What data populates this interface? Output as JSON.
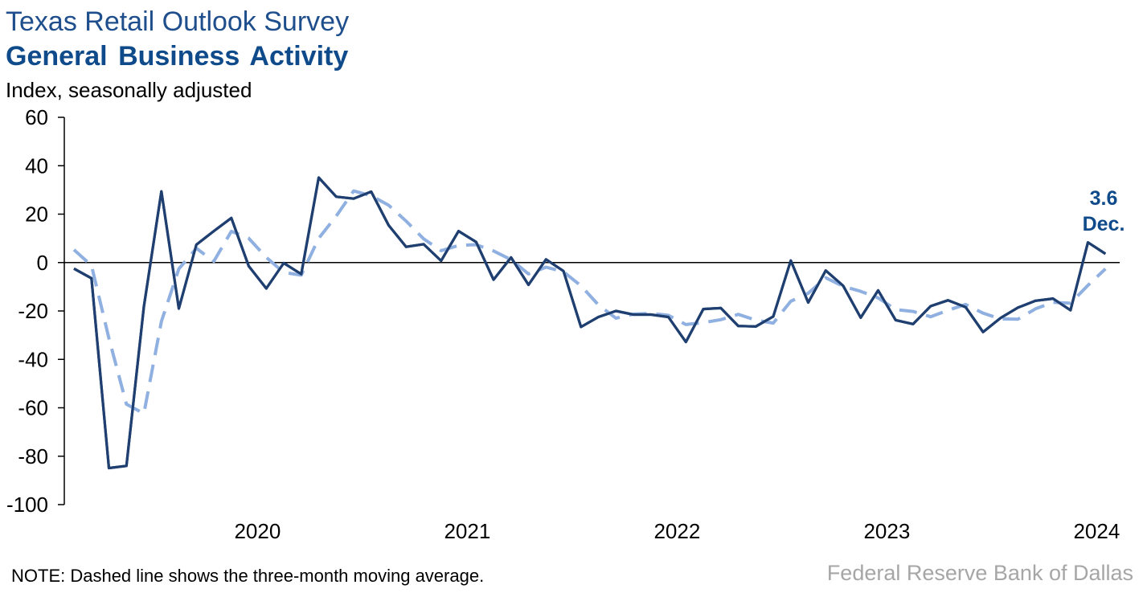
{
  "header": {
    "title": "Texas Retail Outlook Survey",
    "subtitle": "General Business Activity",
    "units": "Index, seasonally adjusted"
  },
  "footer": {
    "note": "NOTE: Dashed line shows the three-month moving average.",
    "source": "Federal Reserve Bank of Dallas"
  },
  "colors": {
    "actual": "#1f3f70",
    "moving_average": "#8fb0e0",
    "title": "#1f4e8c",
    "source": "#a6a6a6"
  },
  "chart_data": {
    "type": "line",
    "title": "General Business Activity",
    "ylabel": "Index, seasonally adjusted",
    "ylim": [
      -100,
      60
    ],
    "yticks": [
      60,
      40,
      20,
      0,
      -20,
      -40,
      -60,
      -80,
      -100
    ],
    "xticks": [
      "2020",
      "2021",
      "2022",
      "2023",
      "2024"
    ],
    "x_start": "2019-08",
    "x_end": "2024-12",
    "grid": false,
    "legend": "none",
    "callout": {
      "value": "3.6",
      "label": "Dec."
    },
    "series": [
      {
        "style": "solid",
        "values": [
          -2.5,
          -6.5,
          -84.9,
          -84.0,
          -18.2,
          29.4,
          -19.0,
          7.4,
          13.0,
          18.4,
          -1.5,
          -10.7,
          -0.2,
          -4.8,
          35.1,
          27.2,
          26.4,
          29.3,
          15.4,
          6.5,
          7.6,
          0.7,
          13.0,
          8.5,
          -7.1,
          2.1,
          -9.2,
          1.3,
          -3.5,
          -26.6,
          -22.5,
          -20.0,
          -21.5,
          -21.5,
          -22.5,
          -32.8,
          -19.2,
          -18.8,
          -26.2,
          -26.4,
          -22.3,
          0.8,
          -16.5,
          -3.3,
          -9.6,
          -22.8,
          -11.5,
          -23.8,
          -25.4,
          -18.0,
          -15.6,
          -18.4,
          -28.7,
          -22.9,
          -18.6,
          -15.8,
          -14.9,
          -19.7,
          8.3,
          3.6
        ]
      },
      {
        "style": "dashed",
        "values": [
          5.3,
          -1.2,
          -31.3,
          -58.5,
          -62.4,
          -24.3,
          -2.6,
          5.9,
          0.5,
          12.9,
          10.0,
          2.1,
          -4.1,
          -5.2,
          10.0,
          19.2,
          29.6,
          27.6,
          23.7,
          17.1,
          9.8,
          4.9,
          7.1,
          7.4,
          4.8,
          1.2,
          -4.7,
          -1.9,
          -3.8,
          -9.6,
          -17.5,
          -23.0,
          -21.3,
          -21.0,
          -21.8,
          -25.6,
          -24.8,
          -23.6,
          -21.4,
          -23.8,
          -25.0,
          -16.0,
          -12.7,
          -6.3,
          -9.8,
          -11.9,
          -14.6,
          -19.4,
          -20.2,
          -22.4,
          -19.7,
          -17.3,
          -20.9,
          -23.3,
          -23.4,
          -19.1,
          -16.4,
          -16.8,
          -9.4,
          -2.6
        ]
      }
    ]
  }
}
